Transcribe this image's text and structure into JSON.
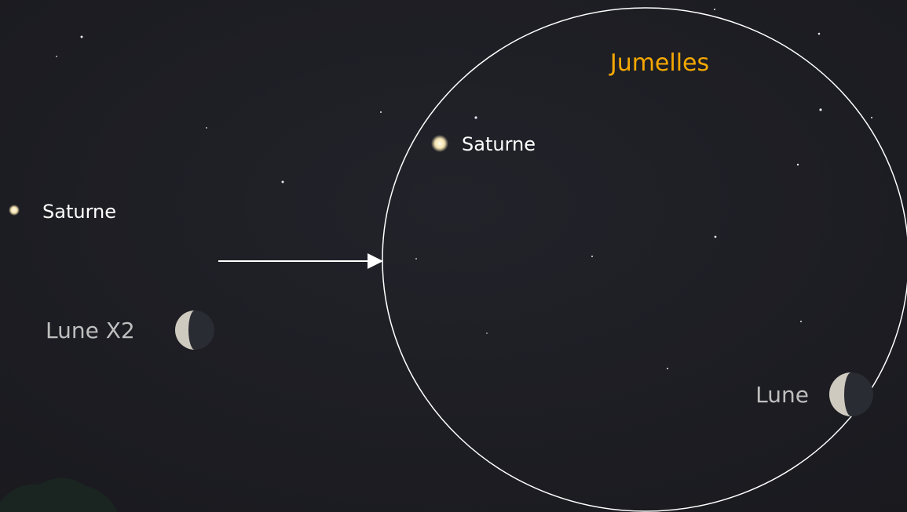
{
  "left_view": {
    "saturn_label": "Saturne",
    "moon_label": "Lune X2"
  },
  "binocular_view": {
    "title": "Jumelles",
    "saturn_label": "Saturne",
    "moon_label": "Lune"
  }
}
